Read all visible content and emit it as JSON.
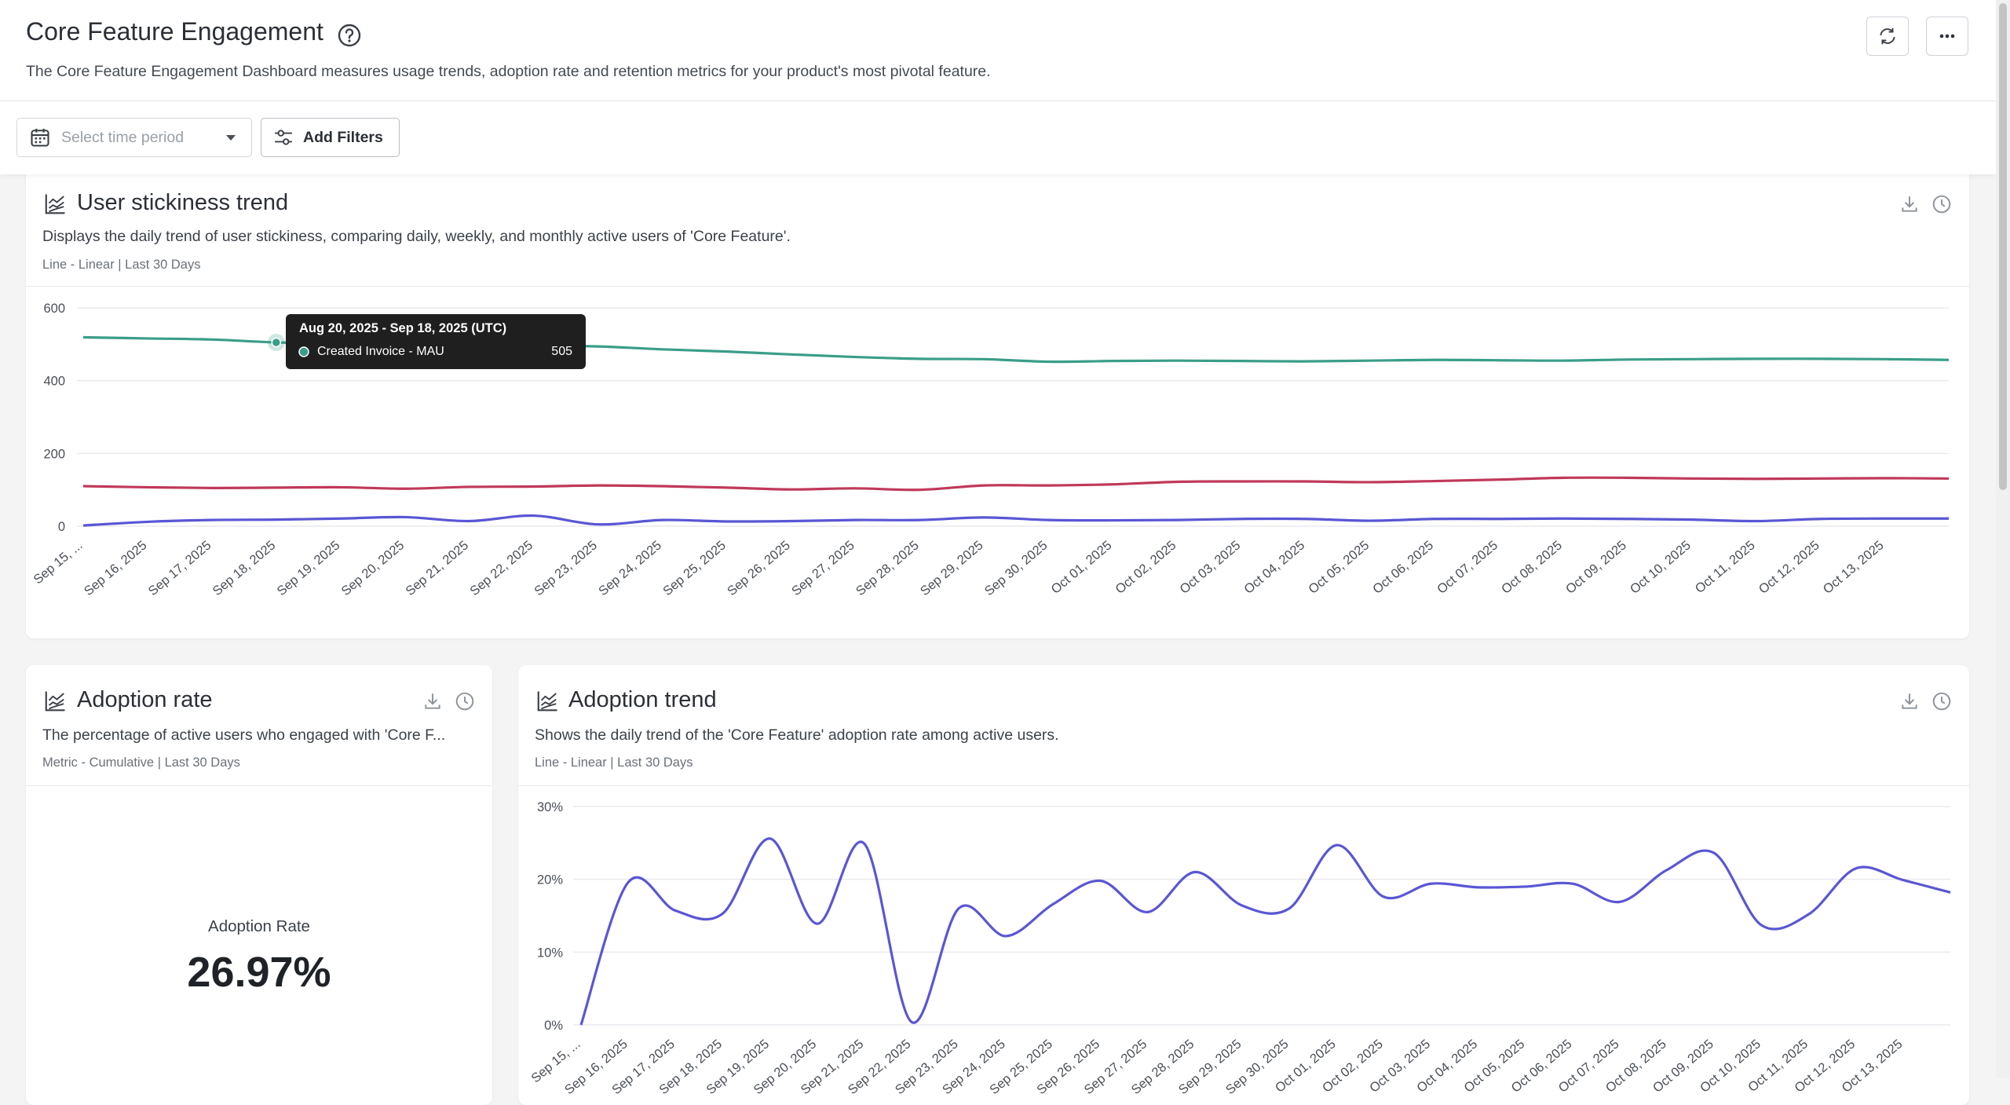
{
  "header": {
    "title": "Core Feature Engagement",
    "description": "The Core Feature Engagement Dashboard measures usage trends, adoption rate and retention metrics for your product's most pivotal feature."
  },
  "toolbar": {
    "time_period_placeholder": "Select time period",
    "filters_button": "Add Filters"
  },
  "metric_panel": {
    "title": "Adoption rate",
    "description": "The percentage of active users who engaged with 'Core F...",
    "caption": "Metric - Cumulative | Last 30 Days",
    "metric_label": "Adoption Rate",
    "metric_value": "26.97%"
  },
  "chart_data": [
    {
      "type": "line",
      "title": "User stickiness trend",
      "subtitle": "Displays the daily trend of user stickiness, comparing daily, weekly, and monthly active users of 'Core Feature'.",
      "caption": "Line - Linear | Last 30 Days",
      "categories": [
        "Sep 15, ...",
        "Sep 16, 2025",
        "Sep 17, 2025",
        "Sep 18, 2025",
        "Sep 19, 2025",
        "Sep 20, 2025",
        "Sep 21, 2025",
        "Sep 22, 2025",
        "Sep 23, 2025",
        "Sep 24, 2025",
        "Sep 25, 2025",
        "Sep 26, 2025",
        "Sep 27, 2025",
        "Sep 28, 2025",
        "Sep 29, 2025",
        "Sep 30, 2025",
        "Oct 01, 2025",
        "Oct 02, 2025",
        "Oct 03, 2025",
        "Oct 04, 2025",
        "Oct 05, 2025",
        "Oct 06, 2025",
        "Oct 07, 2025",
        "Oct 08, 2025",
        "Oct 09, 2025",
        "Oct 10, 2025",
        "Oct 11, 2025",
        "Oct 12, 2025",
        "Oct 13, 2025",
        null
      ],
      "series": [
        {
          "name": "Created Invoice - MAU",
          "color": "#3a9e88",
          "values": [
            519,
            516,
            513,
            505,
            502,
            500,
            498,
            496,
            494,
            486,
            480,
            472,
            465,
            460,
            459,
            452,
            454,
            455,
            454,
            453,
            455,
            457,
            456,
            455,
            458,
            459,
            460,
            460,
            459,
            457
          ]
        },
        {
          "color": "#c0395a",
          "values": [
            110,
            107,
            105,
            106,
            107,
            103,
            108,
            109,
            112,
            110,
            106,
            101,
            104,
            100,
            112,
            112,
            115,
            122,
            123,
            123,
            121,
            124,
            128,
            133,
            133,
            131,
            130,
            131,
            132,
            131
          ]
        },
        {
          "color": "#5a56d4",
          "values": [
            2,
            12,
            17,
            18,
            21,
            25,
            14,
            29,
            5,
            17,
            13,
            14,
            17,
            17,
            24,
            17,
            16,
            17,
            20,
            20,
            15,
            20,
            20,
            21,
            20,
            18,
            14,
            20,
            21,
            21
          ]
        }
      ],
      "ylim": [
        0,
        600
      ],
      "yticks": [
        0,
        200,
        400,
        600
      ],
      "grid": true,
      "tooltip": {
        "title": "Aug 20, 2025 - Sep 18, 2025 (UTC)",
        "series": 0,
        "index": 3
      }
    },
    {
      "type": "line",
      "title": "Adoption trend",
      "subtitle": "Shows the daily trend of the 'Core Feature' adoption rate among active users.",
      "caption": "Line - Linear | Last 30 Days",
      "categories": [
        "Sep 15, ...",
        "Sep 16, 2025",
        "Sep 17, 2025",
        "Sep 18, 2025",
        "Sep 19, 2025",
        "Sep 20, 2025",
        "Sep 21, 2025",
        "Sep 22, 2025",
        "Sep 23, 2025",
        "Sep 24, 2025",
        "Sep 25, 2025",
        "Sep 26, 2025",
        "Sep 27, 2025",
        "Sep 28, 2025",
        "Sep 29, 2025",
        "Sep 30, 2025",
        "Oct 01, 2025",
        "Oct 02, 2025",
        "Oct 03, 2025",
        "Oct 04, 2025",
        "Oct 05, 2025",
        "Oct 06, 2025",
        "Oct 07, 2025",
        "Oct 08, 2025",
        "Oct 09, 2025",
        "Oct 10, 2025",
        "Oct 11, 2025",
        "Oct 12, 2025",
        "Oct 13, 2025",
        null
      ],
      "series": [
        {
          "color": "#5a56d4",
          "values": [
            0,
            19.6,
            15.7,
            15.3,
            25.6,
            13.9,
            24.9,
            0.4,
            16,
            12.2,
            16.6,
            19.8,
            15.5,
            21,
            16.4,
            16,
            24.7,
            17.6,
            19.4,
            18.9,
            19,
            19.4,
            16.9,
            21.3,
            23.6,
            13.7,
            15.2,
            21.5,
            19.9,
            18.2
          ]
        }
      ],
      "ylim": [
        0,
        30
      ],
      "yticks": [
        {
          "value": 0,
          "label": "0%"
        },
        {
          "value": 10,
          "label": "10%"
        },
        {
          "value": 20,
          "label": "20%"
        },
        {
          "value": 30,
          "label": "30%"
        }
      ],
      "grid": true
    }
  ]
}
